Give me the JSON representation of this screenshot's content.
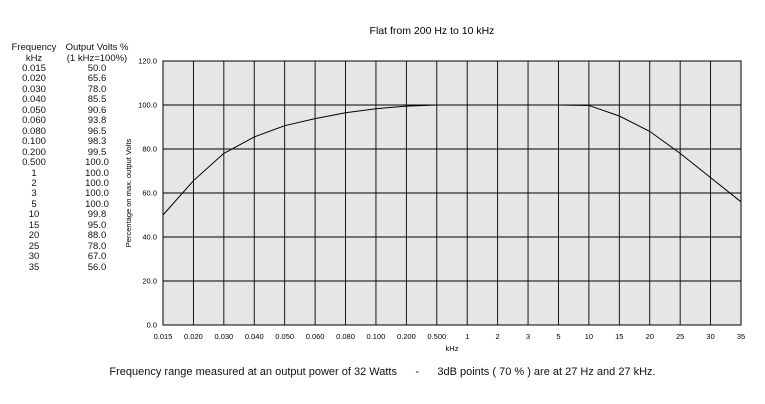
{
  "table": {
    "header": {
      "col1_line1": "Frequency",
      "col1_line2": "kHz",
      "col2_line1": "Output Volts %",
      "col2_line2": "(1 kHz=100%)"
    },
    "rows": [
      [
        "0.015",
        "50.0"
      ],
      [
        "0.020",
        "65.6"
      ],
      [
        "0.030",
        "78.0"
      ],
      [
        "0.040",
        "85.5"
      ],
      [
        "0.050",
        "90.6"
      ],
      [
        "0.060",
        "93.8"
      ],
      [
        "0.080",
        "96.5"
      ],
      [
        "0.100",
        "98.3"
      ],
      [
        "0.200",
        "99.5"
      ],
      [
        "0.500",
        "100.0"
      ],
      [
        "1",
        "100.0"
      ],
      [
        "2",
        "100.0"
      ],
      [
        "3",
        "100.0"
      ],
      [
        "5",
        "100.0"
      ],
      [
        "10",
        "99.8"
      ],
      [
        "15",
        "95.0"
      ],
      [
        "20",
        "88.0"
      ],
      [
        "25",
        "78.0"
      ],
      [
        "30",
        "67.0"
      ],
      [
        "35",
        "56.0"
      ]
    ]
  },
  "chart_data": {
    "type": "line",
    "title": "Flat from 200 Hz to 10 kHz",
    "xlabel": "kHz",
    "ylabel": "Percentage on max. output Volts",
    "x_tick_labels": [
      "0.015",
      "0.020",
      "0.030",
      "0.040",
      "0.050",
      "0.060",
      "0.080",
      "0.100",
      "0.200",
      "0.500",
      "1",
      "2",
      "3",
      "5",
      "10",
      "15",
      "20",
      "25",
      "30",
      "35"
    ],
    "y_ticks": [
      "0.0",
      "20.0",
      "40.0",
      "60.0",
      "80.0",
      "100.0",
      "120.0"
    ],
    "ylim": [
      0,
      120
    ],
    "grid": true,
    "line_color": "#000000",
    "plot_bg": "#e6e6e6",
    "x": [
      "0.015",
      "0.020",
      "0.030",
      "0.040",
      "0.050",
      "0.060",
      "0.080",
      "0.100",
      "0.200",
      "0.500",
      "1",
      "2",
      "3",
      "5",
      "10",
      "15",
      "20",
      "25",
      "30",
      "35"
    ],
    "y": [
      50.0,
      65.6,
      78.0,
      85.5,
      90.6,
      93.8,
      96.5,
      98.3,
      99.5,
      100.0,
      100.0,
      100.0,
      100.0,
      100.0,
      99.8,
      95.0,
      88.0,
      78.0,
      67.0,
      56.0
    ]
  },
  "footer": {
    "left": "Frequency range measured at an output power of 32 Watts",
    "sep": "-",
    "right": "3dB points ( 70 % ) are at 27 Hz and 27 kHz."
  }
}
